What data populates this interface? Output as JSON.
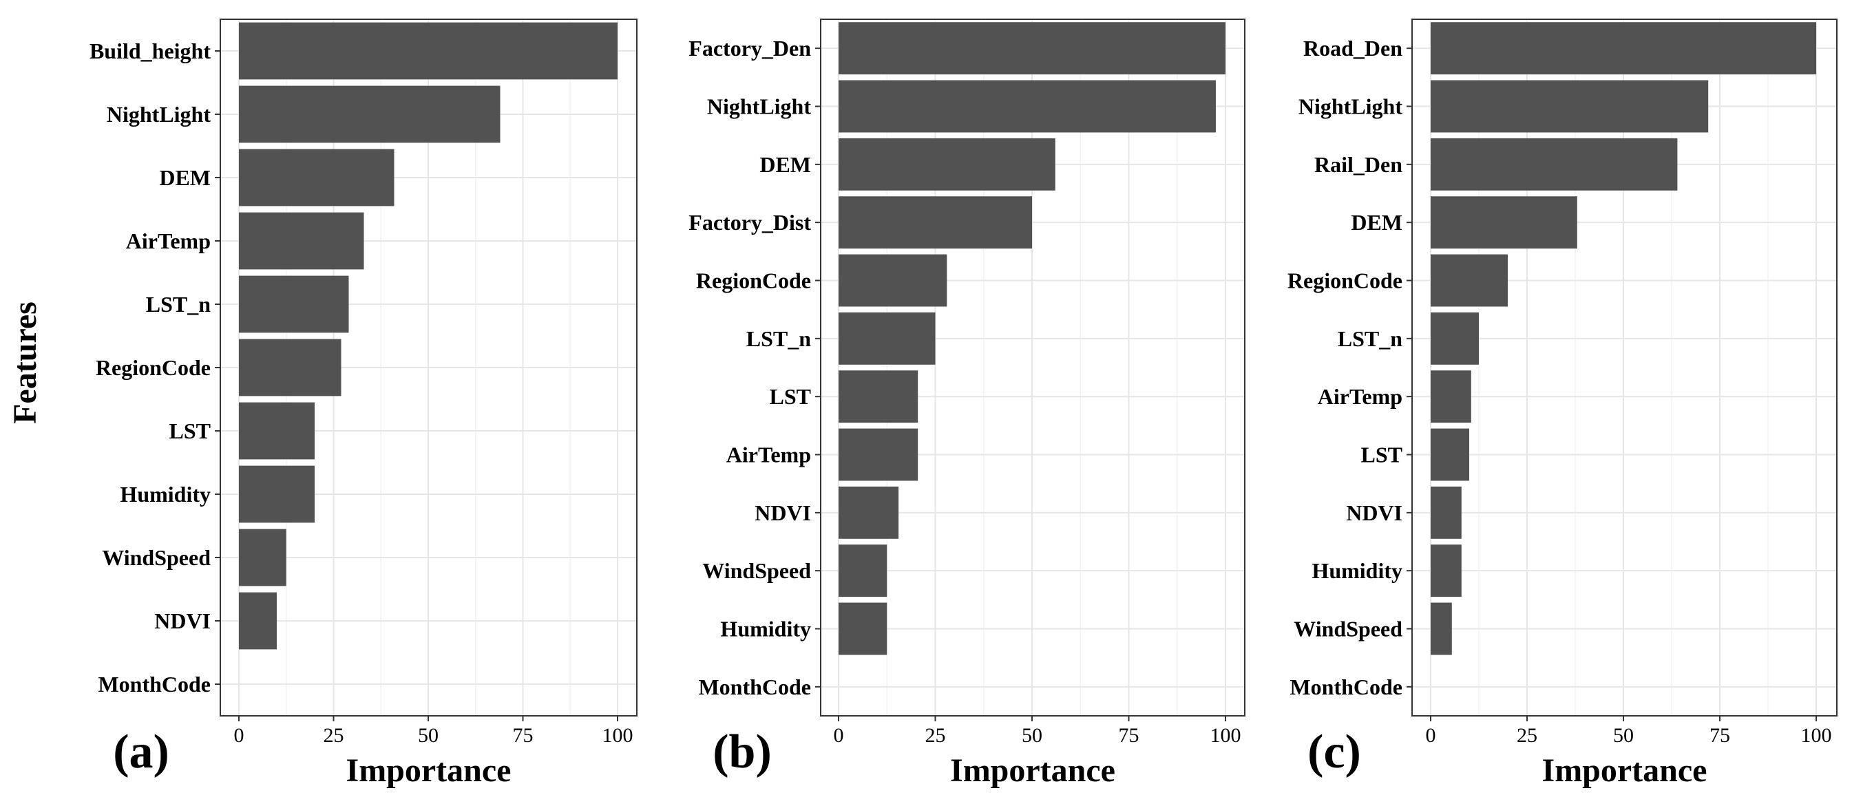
{
  "ylabel": "Features",
  "chart_data": [
    {
      "type": "bar",
      "orientation": "horizontal",
      "panel_label": "(a)",
      "xlabel": "Importance",
      "ylabel": "Features",
      "xlim": [
        0,
        100
      ],
      "xticks": [
        0,
        25,
        50,
        75,
        100
      ],
      "grid": true,
      "categories": [
        "Build_height",
        "NightLight",
        "DEM",
        "AirTemp",
        "LST_n",
        "RegionCode",
        "LST",
        "Humidity",
        "WindSpeed",
        "NDVI",
        "MonthCode"
      ],
      "values": [
        100,
        69,
        41,
        33,
        29,
        27,
        20,
        20,
        12.5,
        10,
        0
      ]
    },
    {
      "type": "bar",
      "orientation": "horizontal",
      "panel_label": "(b)",
      "xlabel": "Importance",
      "xlim": [
        0,
        100
      ],
      "xticks": [
        0,
        25,
        50,
        75,
        100
      ],
      "grid": true,
      "categories": [
        "Factory_Den",
        "NightLight",
        "DEM",
        "Factory_Dist",
        "RegionCode",
        "LST_n",
        "LST",
        "AirTemp",
        "NDVI",
        "WindSpeed",
        "Humidity",
        "MonthCode"
      ],
      "values": [
        100,
        97.5,
        56,
        50,
        28,
        25,
        20.5,
        20.5,
        15.5,
        12.5,
        12.5,
        0
      ]
    },
    {
      "type": "bar",
      "orientation": "horizontal",
      "panel_label": "(c)",
      "xlabel": "Importance",
      "xlim": [
        0,
        100
      ],
      "xticks": [
        0,
        25,
        50,
        75,
        100
      ],
      "grid": true,
      "categories": [
        "Road_Den",
        "NightLight",
        "Rail_Den",
        "DEM",
        "RegionCode",
        "LST_n",
        "AirTemp",
        "LST",
        "NDVI",
        "Humidity",
        "WindSpeed",
        "MonthCode"
      ],
      "values": [
        100,
        72,
        64,
        38,
        20,
        12.5,
        10.5,
        10,
        8,
        8,
        5.5,
        0
      ]
    }
  ]
}
